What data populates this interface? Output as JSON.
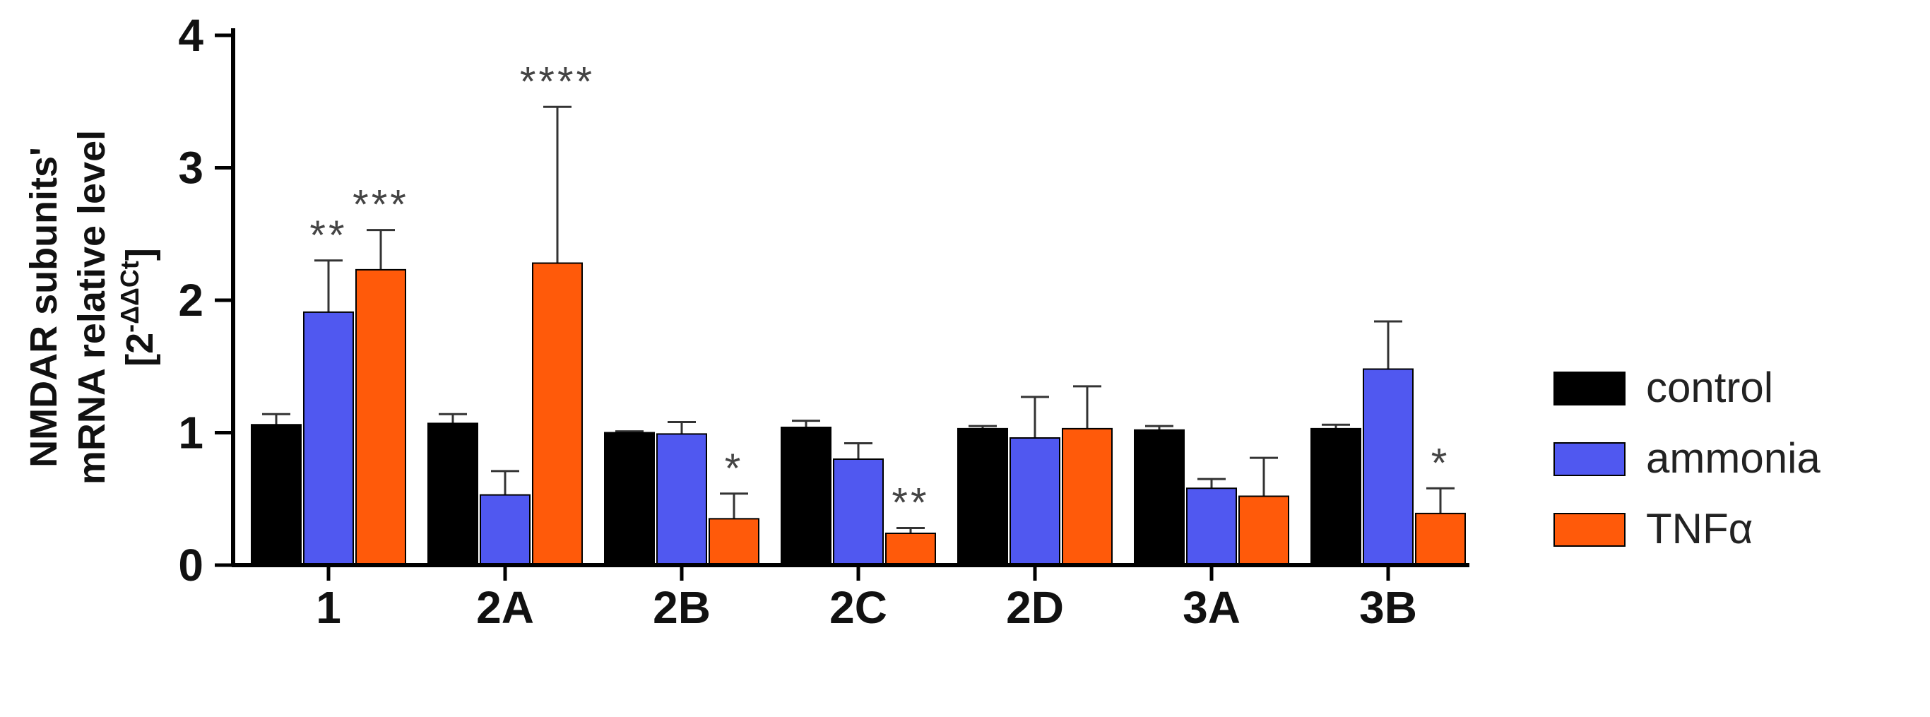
{
  "colors": {
    "control": "#000000",
    "ammonia": "#5058F0",
    "tnf": "#FF5A0A",
    "axis": "#000000",
    "errorbar": "#333333",
    "significance": "#444444"
  },
  "chart_data": {
    "type": "bar",
    "title": "",
    "xlabel": "",
    "ylabel_lines": [
      "NMDAR subunits'",
      "mRNA relative level"
    ],
    "ylabel_unit": {
      "prefix": "[2",
      "superscript": "-ΔΔCt",
      "suffix": "]"
    },
    "ylim": [
      0,
      4
    ],
    "yticks": [
      0,
      1,
      2,
      3,
      4
    ],
    "grid": false,
    "legend_position": "right",
    "categories": [
      "1",
      "2A",
      "2B",
      "2C",
      "2D",
      "3A",
      "3B"
    ],
    "series": [
      {
        "key": "control",
        "name": "control",
        "color": "#000000",
        "values": [
          1.06,
          1.07,
          1.0,
          1.04,
          1.03,
          1.02,
          1.03
        ],
        "errors": [
          0.08,
          0.07,
          0.01,
          0.05,
          0.02,
          0.03,
          0.03
        ],
        "significance": [
          "",
          "",
          "",
          "",
          "",
          "",
          ""
        ]
      },
      {
        "key": "ammonia",
        "name": "ammonia",
        "color": "#5058F0",
        "values": [
          1.91,
          0.53,
          0.99,
          0.8,
          0.96,
          0.58,
          1.48
        ],
        "errors": [
          0.39,
          0.18,
          0.09,
          0.12,
          0.31,
          0.07,
          0.36
        ],
        "significance": [
          "**",
          "",
          "",
          "",
          "",
          "",
          ""
        ]
      },
      {
        "key": "tnf",
        "name": "TNFα",
        "color": "#FF5A0A",
        "values": [
          2.23,
          2.28,
          0.35,
          0.24,
          1.03,
          0.52,
          0.39
        ],
        "errors": [
          0.3,
          1.18,
          0.19,
          0.04,
          0.32,
          0.29,
          0.19
        ],
        "significance": [
          "***",
          "****",
          "*",
          "**",
          "",
          "",
          "*"
        ]
      }
    ]
  }
}
